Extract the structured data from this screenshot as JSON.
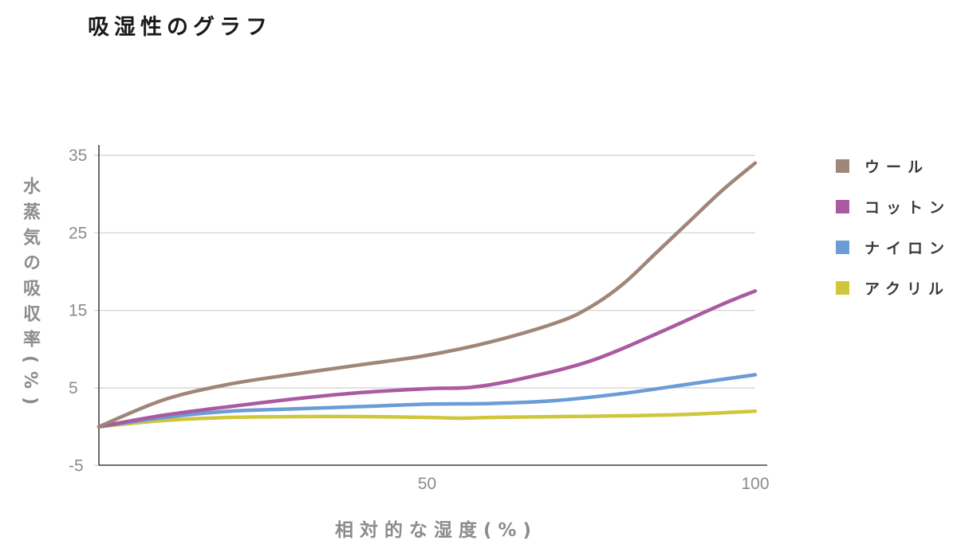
{
  "chart_data": {
    "type": "line",
    "title": "吸湿性のグラフ",
    "xlabel": "相対的な湿度(%)",
    "ylabel": "水蒸気の吸収率(%)",
    "xlim": [
      0,
      100
    ],
    "ylim": [
      -5,
      36
    ],
    "x_ticks": [
      {
        "value": 50,
        "label": "50"
      },
      {
        "value": 100,
        "label": "100"
      }
    ],
    "y_ticks": [
      {
        "value": 35,
        "label": "35"
      },
      {
        "value": 25,
        "label": "25"
      },
      {
        "value": 15,
        "label": "15"
      },
      {
        "value": 5,
        "label": "5"
      },
      {
        "value": -5,
        "label": "-5"
      }
    ],
    "grid": true,
    "legend_position": "right",
    "series": [
      {
        "name": "ウール",
        "color": "#a08679",
        "points": [
          [
            0,
            0
          ],
          [
            10,
            3.5
          ],
          [
            20,
            5.5
          ],
          [
            30,
            6.8
          ],
          [
            40,
            8
          ],
          [
            50,
            9.2
          ],
          [
            60,
            11
          ],
          [
            70,
            13.5
          ],
          [
            75,
            15.5
          ],
          [
            80,
            18.5
          ],
          [
            85,
            22.5
          ],
          [
            90,
            26.5
          ],
          [
            95,
            30.5
          ],
          [
            100,
            34
          ]
        ]
      },
      {
        "name": "コットン",
        "color": "#a95aa0",
        "points": [
          [
            0,
            0
          ],
          [
            10,
            1.5
          ],
          [
            20,
            2.6
          ],
          [
            30,
            3.6
          ],
          [
            40,
            4.4
          ],
          [
            50,
            4.9
          ],
          [
            57,
            5.1
          ],
          [
            65,
            6.3
          ],
          [
            75,
            8.5
          ],
          [
            85,
            12
          ],
          [
            95,
            15.8
          ],
          [
            100,
            17.5
          ]
        ]
      },
      {
        "name": "ナイロン",
        "color": "#6a9cd6",
        "points": [
          [
            0,
            0
          ],
          [
            10,
            1.2
          ],
          [
            20,
            2
          ],
          [
            30,
            2.3
          ],
          [
            40,
            2.6
          ],
          [
            50,
            2.9
          ],
          [
            60,
            3
          ],
          [
            70,
            3.4
          ],
          [
            80,
            4.3
          ],
          [
            90,
            5.5
          ],
          [
            100,
            6.7
          ]
        ]
      },
      {
        "name": "アクリル",
        "color": "#cfc63c",
        "points": [
          [
            0,
            0
          ],
          [
            10,
            0.8
          ],
          [
            20,
            1.2
          ],
          [
            30,
            1.3
          ],
          [
            40,
            1.3
          ],
          [
            50,
            1.2
          ],
          [
            55,
            1.1
          ],
          [
            60,
            1.2
          ],
          [
            70,
            1.3
          ],
          [
            80,
            1.4
          ],
          [
            90,
            1.6
          ],
          [
            100,
            2
          ]
        ]
      }
    ]
  }
}
